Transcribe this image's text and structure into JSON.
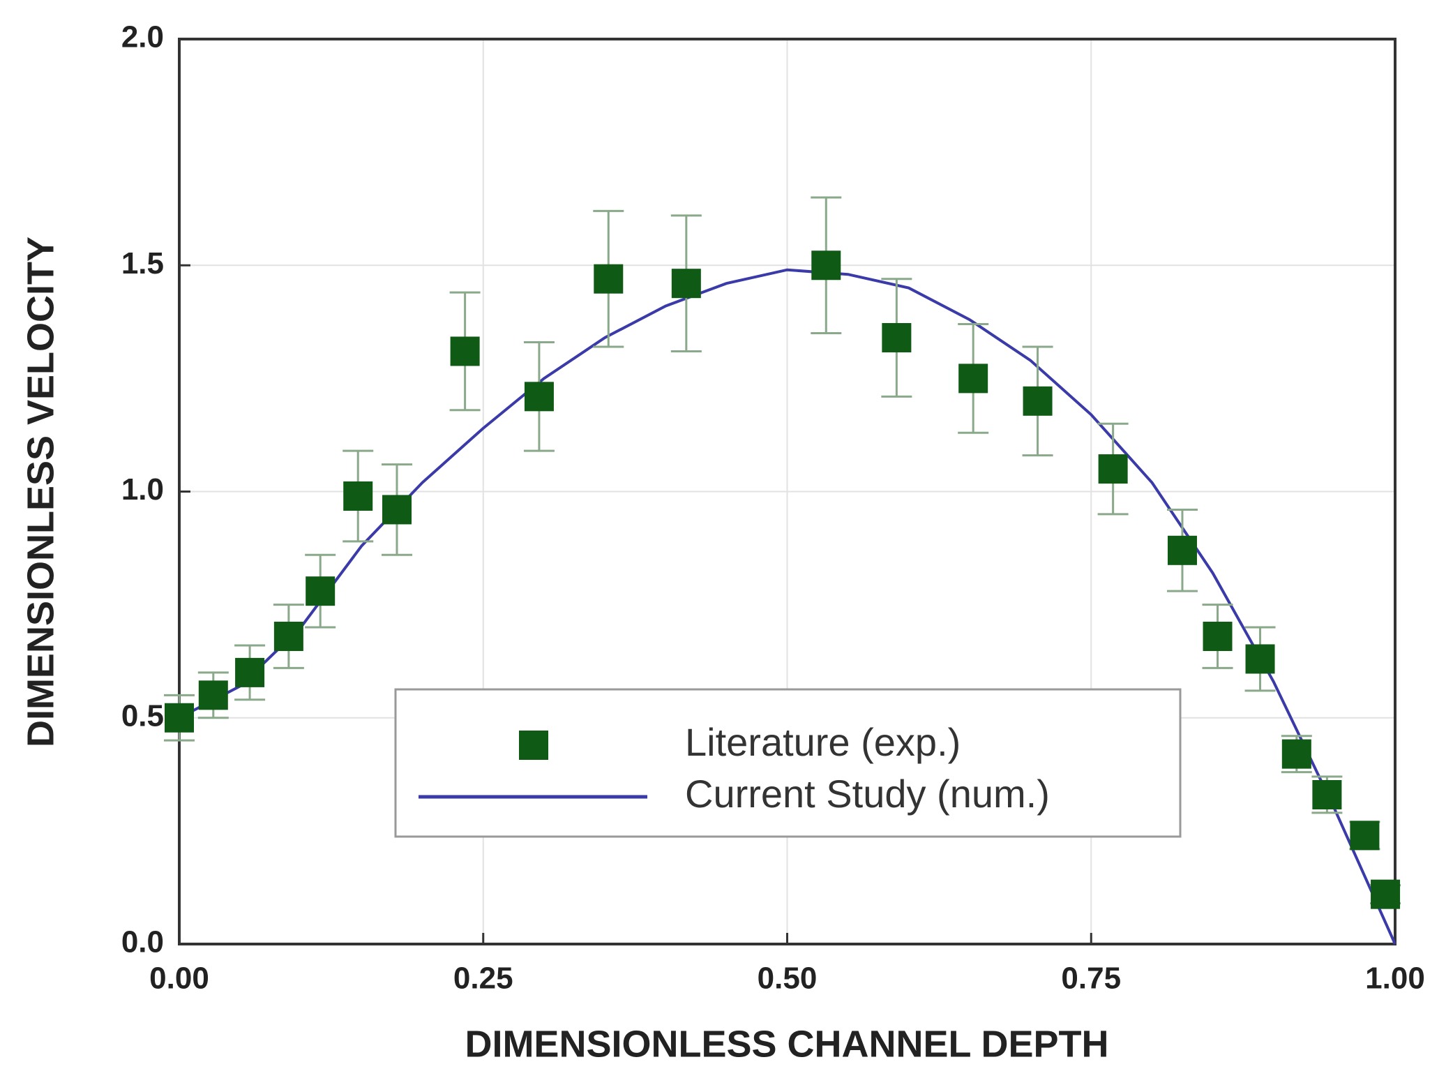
{
  "chart_data": {
    "type": "scatter",
    "xlabel": "DIMENSIONLESS CHANNEL DEPTH",
    "ylabel": "DIMENSIONLESS VELOCITY",
    "xlim": [
      0,
      1
    ],
    "ylim": [
      0,
      2
    ],
    "xticks": [
      {
        "value": 0,
        "label": "0.00"
      },
      {
        "value": 0.25,
        "label": "0.25"
      },
      {
        "value": 0.5,
        "label": "0.50"
      },
      {
        "value": 0.75,
        "label": "0.75"
      },
      {
        "value": 1,
        "label": "1.00"
      }
    ],
    "yticks": [
      {
        "value": 0,
        "label": "0.0"
      },
      {
        "value": 0.5,
        "label": "0.5"
      },
      {
        "value": 1,
        "label": "1.0"
      },
      {
        "value": 1.5,
        "label": "1.5"
      },
      {
        "value": 2,
        "label": "2.0"
      }
    ],
    "grid": true,
    "series": [
      {
        "name": "Literature (exp.)",
        "type": "scatter",
        "color": "#0f5a14",
        "x": [
          0.0,
          0.028,
          0.058,
          0.09,
          0.116,
          0.147,
          0.179,
          0.235,
          0.296,
          0.353,
          0.417,
          0.532,
          0.59,
          0.653,
          0.706,
          0.768,
          0.825,
          0.854,
          0.889,
          0.919,
          0.944,
          0.975,
          0.992
        ],
        "values": [
          0.5,
          0.55,
          0.6,
          0.68,
          0.78,
          0.99,
          0.96,
          1.31,
          1.21,
          1.47,
          1.46,
          1.5,
          1.34,
          1.25,
          1.2,
          1.05,
          0.87,
          0.68,
          0.63,
          0.42,
          0.33,
          0.24,
          0.11
        ],
        "errors": [
          0.05,
          0.05,
          0.06,
          0.07,
          0.08,
          0.1,
          0.1,
          0.13,
          0.12,
          0.15,
          0.15,
          0.15,
          0.13,
          0.12,
          0.12,
          0.1,
          0.09,
          0.07,
          0.07,
          0.04,
          0.04,
          0.03,
          0.02
        ]
      },
      {
        "name": "Current Study (num.)",
        "type": "line",
        "color": "#3a3aa8",
        "x": [
          0,
          0.05,
          0.1,
          0.15,
          0.2,
          0.25,
          0.3,
          0.35,
          0.4,
          0.45,
          0.5,
          0.55,
          0.6,
          0.65,
          0.7,
          0.75,
          0.8,
          0.85,
          0.9,
          0.95,
          1.0
        ],
        "values": [
          0.5,
          0.57,
          0.7,
          0.88,
          1.02,
          1.14,
          1.25,
          1.34,
          1.41,
          1.46,
          1.49,
          1.48,
          1.45,
          1.38,
          1.29,
          1.17,
          1.02,
          0.82,
          0.58,
          0.3,
          0.0
        ]
      }
    ]
  }
}
